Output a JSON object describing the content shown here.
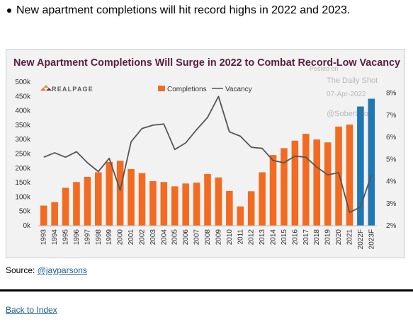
{
  "bullet_text": "New apartment completions will hit record highs in 2022 and 2023.",
  "source": {
    "label": "Source: ",
    "link_text": "@jayparsons"
  },
  "back_link": "Back to Index",
  "watermark": {
    "posted_on": "Posted on",
    "site": "The Daily Shot",
    "date": "07-Apr-2022",
    "handle": "@SoberLook"
  },
  "logo_text": "REALPAGE",
  "chart_data": {
    "type": "bar",
    "title": "New Apartment Completions Will Surge in 2022 to Combat Record-Low Vacancy",
    "categories": [
      "1993",
      "1994",
      "1995",
      "1996",
      "1997",
      "1998",
      "1999",
      "2000",
      "2001",
      "2002",
      "2003",
      "2004",
      "2005",
      "2006",
      "2007",
      "2008",
      "2009",
      "2010",
      "2011",
      "2012",
      "2013",
      "2014",
      "2015",
      "2016",
      "2017",
      "2018",
      "2019",
      "2020",
      "2021",
      "2022F",
      "2023F"
    ],
    "series": [
      {
        "name": "Completions",
        "axis": "left",
        "color": "#f26b21",
        "forecast_color": "#1f77b4",
        "values": [
          70,
          82,
          132,
          152,
          170,
          186,
          222,
          226,
          197,
          183,
          155,
          152,
          137,
          147,
          150,
          180,
          168,
          121,
          67,
          120,
          186,
          246,
          270,
          296,
          320,
          300,
          290,
          345,
          352,
          415,
          442
        ]
      },
      {
        "name": "Vacancy",
        "axis": "right",
        "color": "#555555",
        "type": "line",
        "values": [
          5.1,
          5.3,
          5.1,
          5.35,
          4.85,
          4.45,
          5.05,
          3.6,
          5.8,
          6.4,
          6.55,
          6.6,
          5.45,
          5.75,
          6.35,
          6.9,
          7.85,
          6.25,
          6.05,
          5.55,
          5.5,
          4.95,
          4.85,
          5.15,
          5.1,
          4.65,
          4.3,
          4.4,
          2.6,
          2.85,
          4.3
        ]
      }
    ],
    "y_left": {
      "ticks": [
        "0k",
        "50k",
        "100k",
        "150k",
        "200k",
        "250k",
        "300k",
        "350k",
        "400k",
        "450k",
        "500k"
      ],
      "range": [
        0,
        500
      ]
    },
    "y_right": {
      "ticks": [
        "2%",
        "3%",
        "4%",
        "5%",
        "6%",
        "7%",
        "8%"
      ],
      "range": [
        2,
        8.5
      ]
    },
    "forecast_categories": [
      "2022F",
      "2023F"
    ],
    "legend_position": "top",
    "grid": false
  }
}
